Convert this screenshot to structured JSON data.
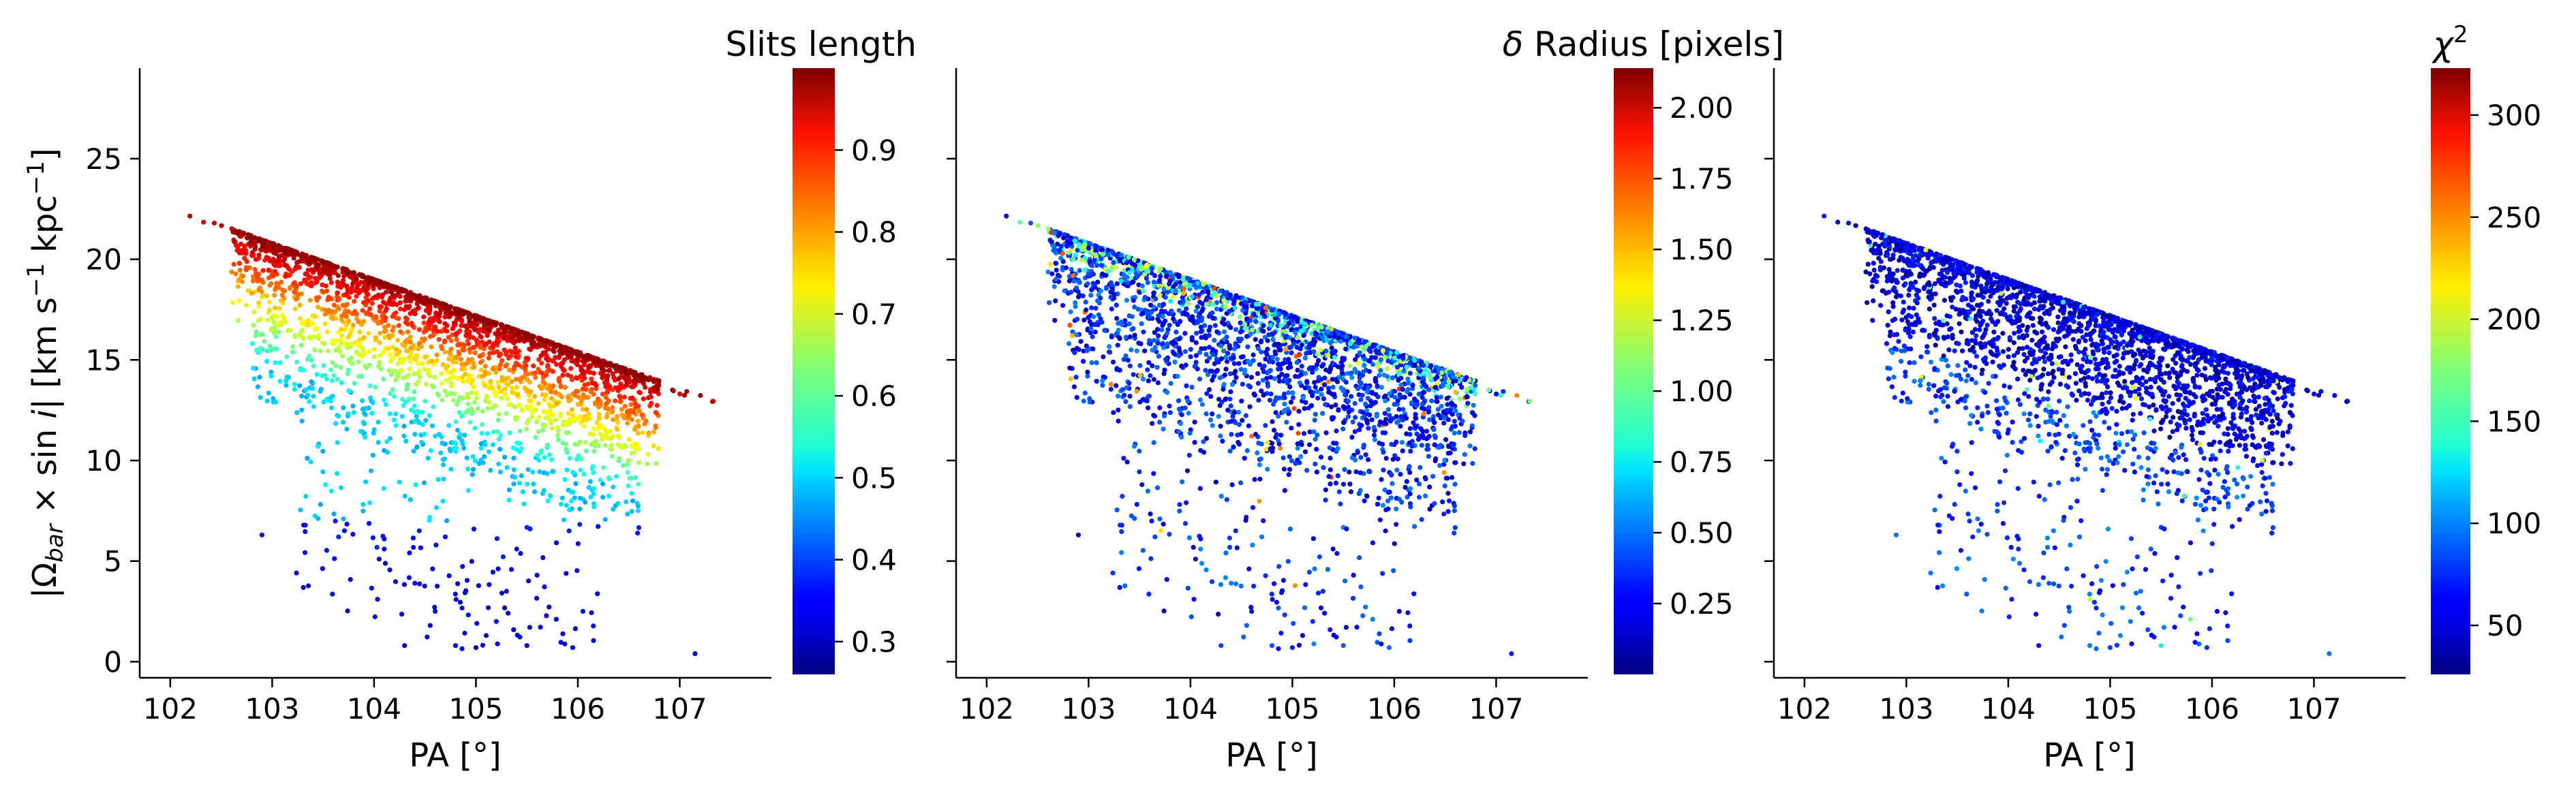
{
  "chart_data": [
    {
      "type": "scatter",
      "xlabel": "PA [°]",
      "ylabel": "|Ω",
      "ylabel_sub": "bar",
      "ylabel_rest": " × sin ",
      "ylabel_i": "i",
      "ylabel_units": "|   [km s",
      "ylabel_exp1": "−1",
      "ylabel_units2": " kpc",
      "ylabel_exp2": "−1",
      "ylabel_close": "]",
      "x_ticks": [
        "102",
        "103",
        "104",
        "105",
        "106",
        "107"
      ],
      "x_tick_values": [
        102,
        103,
        104,
        105,
        106,
        107
      ],
      "xlim": [
        101.7,
        107.9
      ],
      "y_ticks": [
        "0",
        "5",
        "10",
        "15",
        "20",
        "25"
      ],
      "y_tick_values": [
        0,
        5,
        10,
        15,
        20,
        25
      ],
      "ylim": [
        -0.8,
        29.5
      ],
      "colorbar": {
        "title": "Slits length",
        "range": [
          0.26,
          1.0
        ],
        "ticks": [
          "0.3",
          "0.4",
          "0.5",
          "0.6",
          "0.7",
          "0.8",
          "0.9"
        ],
        "tick_values": [
          0.3,
          0.4,
          0.5,
          0.6,
          0.7,
          0.8,
          0.9
        ],
        "colormap": "jet"
      }
    },
    {
      "type": "scatter",
      "xlabel": "PA [°]",
      "x_ticks": [
        "102",
        "103",
        "104",
        "105",
        "106",
        "107"
      ],
      "x_tick_values": [
        102,
        103,
        104,
        105,
        106,
        107
      ],
      "xlim": [
        101.7,
        107.9
      ],
      "ylim": [
        -0.8,
        29.5
      ],
      "colorbar": {
        "title_delta": "δ",
        "title": " Radius [pixels]",
        "range": [
          0.0,
          2.14
        ],
        "ticks": [
          "0.25",
          "0.50",
          "0.75",
          "1.00",
          "1.25",
          "1.50",
          "1.75",
          "2.00"
        ],
        "tick_values": [
          0.25,
          0.5,
          0.75,
          1.0,
          1.25,
          1.5,
          1.75,
          2.0
        ],
        "colormap": "jet"
      }
    },
    {
      "type": "scatter",
      "xlabel": "PA [°]",
      "x_ticks": [
        "102",
        "103",
        "104",
        "105",
        "106",
        "107"
      ],
      "x_tick_values": [
        102,
        103,
        104,
        105,
        106,
        107
      ],
      "xlim": [
        101.7,
        107.9
      ],
      "ylim": [
        -0.8,
        29.5
      ],
      "colorbar": {
        "title_chi": "χ",
        "title_exp": "2",
        "range": [
          26,
          323
        ],
        "ticks": [
          "50",
          "100",
          "150",
          "200",
          "250",
          "300"
        ],
        "tick_values": [
          50,
          100,
          150,
          200,
          250,
          300
        ],
        "colormap": "jet"
      }
    }
  ]
}
